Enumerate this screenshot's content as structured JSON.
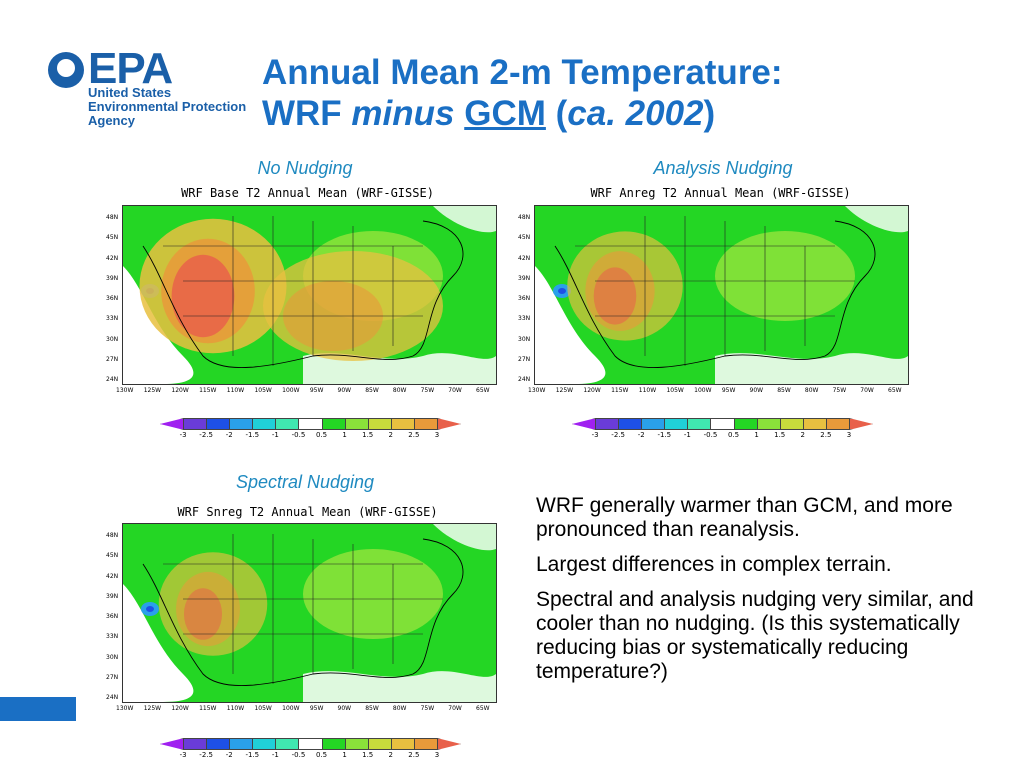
{
  "logo": {
    "wordmark": "EPA",
    "agency_lines": [
      "United States",
      "Environmental Protection",
      "Agency"
    ]
  },
  "title": {
    "line1": "Annual Mean 2-m Temperature:",
    "line2_a": "WRF ",
    "line2_minus": "minus",
    "line2_gcm": "GCM",
    "line2_open": " (",
    "line2_ca": "ca. 2002",
    "line2_close": ")"
  },
  "panels": [
    {
      "caption": "No Nudging",
      "plot_title": "WRF Base T2 Annual Mean (WRF-GISSE)",
      "warm_level": 0.9
    },
    {
      "caption": "Analysis Nudging",
      "plot_title": "WRF Anreg T2 Annual Mean (WRF-GISSE)",
      "warm_level": 0.45
    },
    {
      "caption": "Spectral Nudging",
      "plot_title": "WRF Snreg T2 Annual Mean (WRF-GISSE)",
      "warm_level": 0.35
    }
  ],
  "axes": {
    "lat_ticks": [
      "48N",
      "45N",
      "42N",
      "39N",
      "36N",
      "33N",
      "30N",
      "27N",
      "24N"
    ],
    "lon_ticks": [
      "130W",
      "125W",
      "120W",
      "115W",
      "110W",
      "105W",
      "100W",
      "95W",
      "90W",
      "85W",
      "80W",
      "75W",
      "70W",
      "65W"
    ]
  },
  "colorbar": {
    "labels": [
      "-3",
      "-2.5",
      "-2",
      "-1.5",
      "-1",
      "-0.5",
      "0.5",
      "1",
      "1.5",
      "2",
      "2.5",
      "3"
    ],
    "colors": [
      "#a020f0",
      "#6a3cd8",
      "#1e50e6",
      "#2aa0ea",
      "#20d0d8",
      "#40e8b0",
      "#ffffff",
      "#24d624",
      "#8ae23a",
      "#c8dc3c",
      "#e8c040",
      "#e89a3a",
      "#e8604a"
    ]
  },
  "bullets": [
    "WRF generally warmer than GCM, and more pronounced than reanalysis.",
    "Largest differences in complex terrain.",
    "Spectral and analysis nudging very similar, and cooler than no nudging. (Is this systematically reducing bias or systematically reducing temperature?)"
  ],
  "colors": {
    "title": "#1a6fc4",
    "caption": "#1f8ac0",
    "epa_blue": "#1a5fa8"
  }
}
